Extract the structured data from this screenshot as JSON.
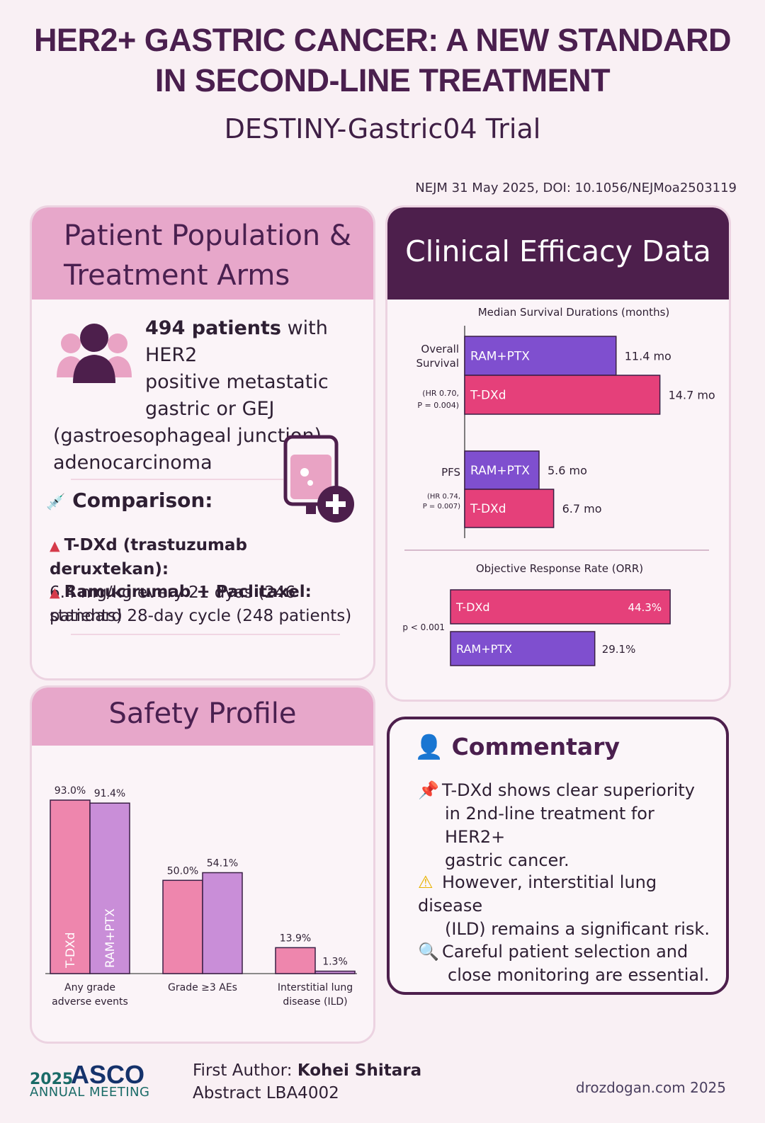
{
  "header": {
    "title_line1": "HER2+ GASTRIC CANCER: A NEW STANDARD",
    "title_line2": "IN SECOND-LINE TREATMENT",
    "subtitle": "DESTINY-Gastric04 Trial",
    "citation": "NEJM 31 May 2025, DOI: 10.1056/NEJMoa2503119"
  },
  "population": {
    "title_line1": "Patient Population &",
    "title_line2": "Treatment Arms",
    "count_bold": "494 patients",
    "desc_line1": " with HER2",
    "desc_line2": "positive metastatic",
    "desc_line3": "gastric or GEJ",
    "desc_line4": "(gastroesophageal junction)",
    "desc_line5": "adenocarcinoma",
    "comparison_label": "Comparison:",
    "arm1_name": "T-DXd (trastuzumab deruxtekan):",
    "arm1_detail": "6.4 mg/kg every 21 dyas (246 patients)",
    "arm2_name": "Ramucirumab + Paclitaxel:",
    "arm2_detail": "standard 28-day cycle (248 patients)"
  },
  "efficacy": {
    "title": "Clinical Efficacy Data"
  },
  "safety": {
    "title": "Safety Profile"
  },
  "commentary": {
    "title": "Commentary",
    "item1_line1": "T-DXd shows clear superiority",
    "item1_line2": "in 2nd-line treatment for HER2+",
    "item1_line3": "gastric cancer.",
    "item2_line1": "However, interstitial lung disease",
    "item2_line2": "(ILD) remains a significant risk.",
    "item3_line1": "Careful patient selection and",
    "item3_line2": "close monitoring are essential.",
    "icon1": "pushpin-icon",
    "icon2": "warning-icon",
    "icon3": "magnifier-icon"
  },
  "footer": {
    "logo_year": "2025",
    "logo_name": "ASCO",
    "logo_meeting": "ANNUAL MEETING",
    "author_label": "First Author: ",
    "author_name": "Kohei Shitara",
    "abstract": "Abstract LBA4002",
    "credit": "drozdogan.com  2025"
  },
  "colors": {
    "tdxd": "#e5407a",
    "ramptx": "#7f4fcf",
    "safety_tdxd": "#ee86ad",
    "safety_ramptx": "#c98ed8",
    "dark_purple": "#4d1f4c",
    "pink_header": "#e7a7ca"
  },
  "chart_data": [
    {
      "type": "bar",
      "orientation": "horizontal",
      "title": "Median Survival Durations (months)",
      "groups": [
        {
          "name": "Overall Survival",
          "stats": "(HR 0.70, P = 0.004)",
          "bars": [
            {
              "arm": "RAM+PTX",
              "value": 11.4,
              "label": "11.4 mo"
            },
            {
              "arm": "T-DXd",
              "value": 14.7,
              "label": "14.7 mo"
            }
          ]
        },
        {
          "name": "PFS",
          "stats": "(HR 0.74, P = 0.007)",
          "bars": [
            {
              "arm": "RAM+PTX",
              "value": 5.6,
              "label": "5.6 mo"
            },
            {
              "arm": "T-DXd",
              "value": 6.7,
              "label": "6.7 mo"
            }
          ]
        }
      ]
    },
    {
      "type": "bar",
      "orientation": "horizontal",
      "title": "Objective Response Rate (ORR)",
      "stats": "p < 0.001",
      "bars": [
        {
          "arm": "T-DXd",
          "value": 44.3,
          "label": "44.3%"
        },
        {
          "arm": "RAM+PTX",
          "value": 29.1,
          "label": "29.1%"
        }
      ]
    },
    {
      "type": "bar",
      "orientation": "vertical",
      "title": "",
      "categories": [
        "Any grade adverse events",
        "Grade ≥3 AEs",
        "Interstitial lung disease (ILD)"
      ],
      "series": [
        {
          "name": "T-DXd",
          "values": [
            93.0,
            50.0,
            13.9
          ],
          "labels": [
            "93.0%",
            "50.0%",
            "13.9%"
          ]
        },
        {
          "name": "RAM+PTX",
          "values": [
            91.4,
            54.1,
            1.3
          ],
          "labels": [
            "91.4%",
            "54.1%",
            "1.3%"
          ]
        }
      ]
    }
  ]
}
